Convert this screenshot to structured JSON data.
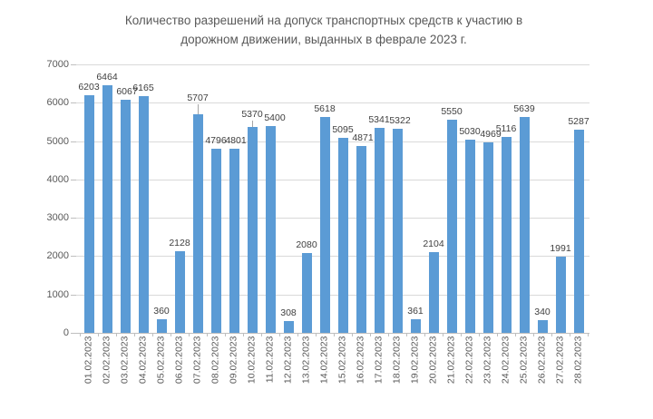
{
  "chart_data": {
    "type": "bar",
    "title": "Количество разрешений на допуск транспортных средств к участию в дорожном движении, выданных в феврале 2023 г.",
    "title_line1": "Количество разрешений на допуск транспортных средств к участию в",
    "title_line2": "дорожном движении, выданных в феврале 2023 г.",
    "xlabel": "",
    "ylabel": "",
    "ylim": [
      0,
      7000
    ],
    "yticks": [
      0,
      1000,
      2000,
      3000,
      4000,
      5000,
      6000,
      7000
    ],
    "grid": true,
    "legend": "none",
    "categories": [
      "01.02.2023",
      "02.02.2023",
      "03.02.2023",
      "04.02.2023",
      "05.02.2023",
      "06.02.2023",
      "07.02.2023",
      "08.02.2023",
      "09.02.2023",
      "10.02.2023",
      "11.02.2023",
      "12.02.2023",
      "13.02.2023",
      "14.02.2023",
      "15.02.2023",
      "16.02.2023",
      "17.02.2023",
      "18.02.2023",
      "19.02.2023",
      "20.02.2023",
      "21.02.2023",
      "22.02.2023",
      "23.02.2023",
      "24.02.2023",
      "25.02.2023",
      "26.02.2023",
      "27.02.2023",
      "28.02.2023"
    ],
    "values": [
      6203,
      6464,
      6067,
      6165,
      360,
      2128,
      5707,
      4796,
      4801,
      5370,
      5400,
      308,
      2080,
      5618,
      5095,
      4871,
      5341,
      5322,
      361,
      2104,
      5550,
      5030,
      4969,
      5116,
      5639,
      340,
      1991,
      5287
    ],
    "colors": {
      "bar": "#5b9bd5",
      "gridline": "#d9d9d9",
      "axis_line": "#bfbfbf",
      "title_text": "#595959",
      "value_label_text": "#404040",
      "axis_label_text": "#595959",
      "leader_line": "#a6a6a6",
      "background": "#ffffff"
    }
  }
}
